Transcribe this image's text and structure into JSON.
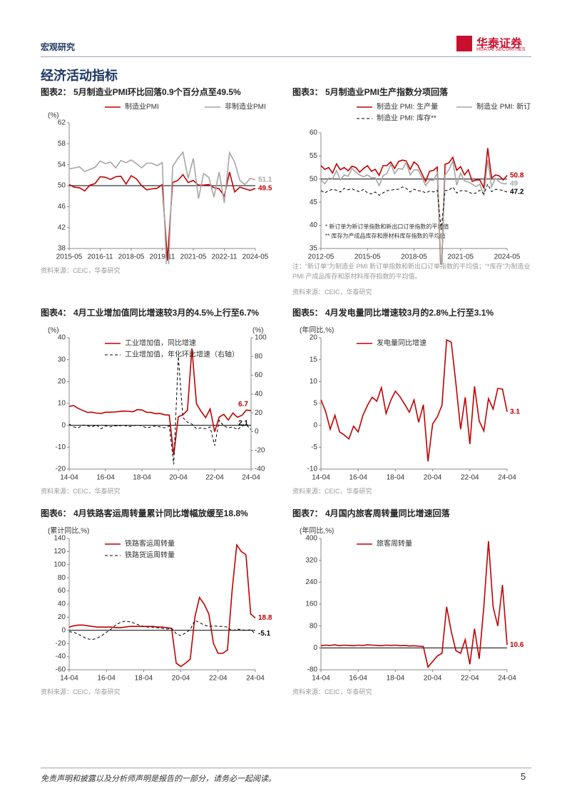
{
  "header": {
    "section": "宏观研究",
    "logo_cn": "华泰证券",
    "logo_en": "HUATAI SECURITIES"
  },
  "section_title": "经济活动指标",
  "footer": {
    "disclaimer": "免责声明和披露以及分析师声明是报告的一部分，请务必一起阅读。",
    "page": "5"
  },
  "chart_data": [
    {
      "type": "line",
      "title": "图表2：  5月制造业PMI环比回落0.9个百分点至49.5%",
      "y_label": "(%)",
      "legend_columns": 2,
      "legend_position": "top",
      "categories": [
        "2015-05",
        null,
        null,
        null,
        null,
        null,
        "2016-11",
        null,
        null,
        null,
        null,
        null,
        "2018-05",
        null,
        null,
        null,
        null,
        null,
        "2019-11",
        null,
        null,
        null,
        null,
        null,
        "2021-05",
        null,
        null,
        null,
        null,
        null,
        "2022-11",
        null,
        null,
        null,
        null,
        null,
        "2024-05"
      ],
      "series": [
        {
          "name": "制造业PMI",
          "color": "#c00000",
          "values": [
            50.2,
            49.7,
            49.6,
            49.0,
            50.1,
            50.4,
            51.7,
            51.6,
            51.2,
            51.7,
            51.8,
            50.3,
            51.9,
            51.3,
            50.0,
            49.2,
            49.4,
            49.5,
            50.2,
            35.7,
            50.6,
            51.0,
            52.1,
            50.6,
            51.0,
            50.1,
            50.1,
            50.2,
            49.6,
            49.4,
            48.0,
            52.6,
            48.8,
            49.7,
            49.4,
            49.1,
            49.5
          ]
        },
        {
          "name": "非制造业PMI",
          "color": "#a6a6a6",
          "values": [
            53.2,
            53.4,
            53.6,
            52.7,
            53.1,
            53.5,
            54.7,
            54.2,
            54.5,
            53.4,
            54.8,
            54.4,
            54.9,
            54.2,
            53.4,
            54.3,
            54.3,
            53.8,
            54.4,
            29.6,
            53.6,
            55.2,
            56.4,
            51.4,
            55.2,
            47.5,
            52.3,
            51.6,
            47.8,
            52.6,
            46.7,
            56.3,
            54.5,
            51.0,
            50.2,
            51.4,
            51.1
          ]
        }
      ],
      "ylim": [
        38,
        62
      ],
      "yticks": [
        38,
        42,
        46,
        50,
        54,
        58,
        62
      ],
      "hline": 50,
      "source": "资料来源：CEIC，华泰研究"
    },
    {
      "type": "line",
      "title": "图表3：  5月制造业PMI生产指数分项回落",
      "legend_columns": 2,
      "legend_position": "top",
      "categories": [
        "2012-05",
        null,
        null,
        null,
        null,
        null,
        null,
        null,
        null,
        null,
        null,
        null,
        "2015-05",
        null,
        null,
        null,
        null,
        null,
        null,
        null,
        null,
        null,
        null,
        null,
        "2018-05",
        null,
        null,
        null,
        null,
        null,
        null,
        null,
        null,
        null,
        null,
        null,
        "2021-05",
        null,
        null,
        null,
        null,
        null,
        null,
        null,
        null,
        null,
        null,
        null,
        "2024-05"
      ],
      "series": [
        {
          "name": "制造业 PMI: 生产量",
          "color": "#c00000",
          "values": [
            52.9,
            52.1,
            52.5,
            51.3,
            53.3,
            52.0,
            52.5,
            51.8,
            52.8,
            52.5,
            51.5,
            52.3,
            52.9,
            51.7,
            52.1,
            50.8,
            52.9,
            52.9,
            53.7,
            52.3,
            53.8,
            54.1,
            53.9,
            52.1,
            53.7,
            53.0,
            51.2,
            49.5,
            51.7,
            51.9,
            52.6,
            27.8,
            53.2,
            53.5,
            54.7,
            51.9,
            52.7,
            50.9,
            52.0,
            49.5,
            49.8,
            49.8,
            48.1,
            56.7,
            50.2,
            50.9,
            50.7,
            49.8,
            50.8
          ]
        },
        {
          "name": "制造业 PMI: 新订单*",
          "color": "#a6a6a6",
          "values": [
            49.8,
            49.0,
            50.2,
            50.1,
            51.8,
            49.8,
            50.9,
            50.6,
            52.3,
            51.5,
            50.9,
            50.5,
            50.9,
            50.3,
            50.3,
            48.6,
            50.7,
            51.2,
            53.2,
            51.2,
            52.3,
            52.1,
            53.6,
            50.9,
            52.0,
            52.0,
            50.4,
            48.6,
            49.8,
            49.7,
            51.3,
            29.3,
            50.9,
            52.0,
            53.9,
            48.7,
            51.3,
            49.6,
            49.4,
            48.9,
            48.4,
            48.9,
            46.4,
            54.1,
            48.3,
            50.2,
            49.4,
            49.0,
            49.0
          ]
        },
        {
          "name": "制造业 PMI: 库存**",
          "color": "#000000",
          "dash": true,
          "values": [
            47.5,
            47.0,
            47.5,
            47.8,
            47.6,
            47.2,
            48.0,
            47.7,
            47.9,
            47.5,
            47.3,
            47.8,
            47.0,
            46.8,
            47.2,
            46.5,
            47.0,
            47.5,
            47.6,
            47.8,
            47.8,
            48.3,
            48.0,
            47.2,
            47.8,
            47.5,
            47.4,
            47.0,
            47.4,
            47.2,
            47.6,
            39.0,
            47.5,
            47.6,
            48.3,
            47.0,
            47.5,
            47.5,
            47.3,
            46.8,
            47.0,
            47.6,
            46.8,
            48.9,
            47.3,
            47.8,
            47.7,
            47.5,
            47.2
          ]
        }
      ],
      "ylim": [
        35,
        60
      ],
      "yticks": [
        35,
        40,
        45,
        50,
        55,
        60
      ],
      "hline": 50,
      "notes": [
        "*  新订单为新订单指数和新出口订单指数的平均值",
        "** 库存为产成品库存和原材料库存指数的平均值"
      ],
      "footnote": "注：“新订单”为制造业 PMI 新订单指数和新出口订单指数的平均值；“*库存”为制造业 PMI 产成品库存和原材料库存指数的平均值。",
      "source": "资料来源：CEIC，华泰研究"
    },
    {
      "type": "line",
      "title": "图表4：  4月工业增加值同比增速较3月的4.5%上行至6.7%",
      "y_label": "(%)",
      "y2_label": "(%)",
      "legend_columns": 1,
      "legend_position": "inside",
      "categories": [
        "14-04",
        null,
        null,
        null,
        null,
        null,
        null,
        null,
        "16-04",
        null,
        null,
        null,
        null,
        null,
        null,
        null,
        "18-04",
        null,
        null,
        null,
        null,
        null,
        null,
        null,
        "20-04",
        null,
        null,
        null,
        null,
        null,
        null,
        null,
        "22-04",
        null,
        null,
        null,
        null,
        null,
        null,
        null,
        "24-04"
      ],
      "series": [
        {
          "name": "工业增加值，同比增速",
          "color": "#c00000",
          "values": [
            8.7,
            9.0,
            7.7,
            6.8,
            5.9,
            6.0,
            5.6,
            5.4,
            6.0,
            6.0,
            6.1,
            6.3,
            6.5,
            6.4,
            6.2,
            7.2,
            7.0,
            6.0,
            5.9,
            5.3,
            5.4,
            4.8,
            4.7,
            -13.5,
            3.9,
            4.8,
            6.9,
            35.1,
            9.8,
            6.4,
            3.5,
            7.5,
            -2.9,
            3.8,
            5.0,
            2.4,
            5.6,
            3.7,
            4.6,
            7.0,
            6.7
          ]
        },
        {
          "name": "工业增加值，年化环比增速（右轴）",
          "color": "#000000",
          "dash": true,
          "axis": "y2",
          "values": [
            8,
            5,
            4,
            7,
            6,
            5,
            7,
            3,
            6,
            5,
            6,
            6,
            7,
            5,
            6,
            7,
            6,
            4,
            5,
            6,
            5,
            4,
            6,
            -35,
            80,
            15,
            10,
            8,
            3,
            4,
            3,
            5,
            -15,
            12,
            6,
            4,
            5,
            2,
            6,
            7,
            2.1
          ]
        }
      ],
      "ylim": [
        -20,
        40
      ],
      "yticks": [
        -20,
        -10,
        0,
        10,
        20,
        30,
        40
      ],
      "y2lim": [
        -40,
        100
      ],
      "y2ticks": [
        -40,
        -20,
        0,
        20,
        40,
        60,
        80,
        100
      ],
      "hline": 0,
      "source": "资料来源：CEIC，华泰研究"
    },
    {
      "type": "line",
      "title": "图表5：  4月发电量同比增速较3月的2.8%上行至3.1%",
      "y_label": "(年同比,%)",
      "legend_columns": 1,
      "legend_position": "inside",
      "categories": [
        "14-04",
        null,
        null,
        null,
        null,
        null,
        null,
        null,
        "16-04",
        null,
        null,
        null,
        null,
        null,
        null,
        null,
        "18-04",
        null,
        null,
        null,
        null,
        null,
        null,
        null,
        "20-04",
        null,
        null,
        null,
        null,
        null,
        null,
        null,
        "22-04",
        null,
        null,
        null,
        null,
        null,
        null,
        null,
        "24-04"
      ],
      "series": [
        {
          "name": "发电量同比增速",
          "color": "#c00000",
          "values": [
            5.8,
            3.2,
            -0.9,
            2.3,
            -1.5,
            -2.2,
            -3.1,
            -0.2,
            -1.5,
            2.2,
            4.6,
            6.4,
            5.5,
            8.6,
            2.7,
            5.7,
            7.8,
            6.5,
            4.8,
            3.0,
            5.8,
            0.7,
            4.7,
            -8.2,
            0.3,
            1.9,
            4.6,
            19.5,
            19.0,
            9.6,
            -0.9,
            6.4,
            -4.3,
            8.9,
            1.0,
            -1.3,
            6.1,
            3.7,
            8.4,
            8.3,
            3.1
          ]
        }
      ],
      "ylim": [
        -10,
        20
      ],
      "yticks": [
        -10,
        -5,
        0,
        5,
        10,
        15,
        20
      ],
      "source": "资料来源：CEIC，华泰研究"
    },
    {
      "type": "line",
      "title": "图表6：  4月铁路客运周转量累计同比增幅放缓至18.8%",
      "y_label": "(累计同比,%)",
      "legend_columns": 1,
      "legend_position": "inside",
      "categories": [
        "14-04",
        null,
        null,
        null,
        null,
        null,
        null,
        null,
        "16-04",
        null,
        null,
        null,
        null,
        null,
        null,
        null,
        "18-04",
        null,
        null,
        null,
        null,
        null,
        null,
        null,
        "20-04",
        null,
        null,
        null,
        null,
        null,
        null,
        null,
        "22-04",
        null,
        null,
        null,
        null,
        null,
        null,
        null,
        "24-04"
      ],
      "series": [
        {
          "name": "铁路客运周转量",
          "color": "#c00000",
          "values": [
            5,
            7,
            8,
            8,
            7,
            6,
            5,
            5,
            5,
            5,
            4,
            4,
            5,
            6,
            6,
            6,
            6,
            6,
            6,
            5,
            5,
            4,
            3,
            -50,
            -55,
            -50,
            -44,
            20,
            50,
            40,
            25,
            -20,
            -35,
            -35,
            -30,
            60,
            130,
            120,
            115,
            25,
            18.8
          ]
        },
        {
          "name": "铁路货运周转量",
          "color": "#000000",
          "dash": true,
          "values": [
            -2,
            -3,
            -6,
            -10,
            -13,
            -14,
            -12,
            -8,
            -3,
            2,
            8,
            12,
            14,
            13,
            11,
            8,
            6,
            5,
            5,
            4,
            3,
            2,
            3,
            -5,
            -8,
            -4,
            1,
            15,
            12,
            8,
            6,
            7,
            6,
            6,
            5,
            -1,
            2,
            1,
            0,
            1,
            -5.1
          ]
        }
      ],
      "ylim": [
        -60,
        140
      ],
      "yticks": [
        -60,
        -40,
        -20,
        0,
        20,
        40,
        60,
        80,
        100,
        120,
        140
      ],
      "hline": 0,
      "source": "资料来源：CEIC，华泰研究"
    },
    {
      "type": "line",
      "title": "图表7：  4月国内旅客周转量同比增速回落",
      "y_label": "(年同比,%)",
      "legend_columns": 1,
      "legend_position": "inside",
      "categories": [
        "14-04",
        null,
        null,
        null,
        null,
        null,
        null,
        null,
        "16-04",
        null,
        null,
        null,
        null,
        null,
        null,
        null,
        "18-04",
        null,
        null,
        null,
        null,
        null,
        null,
        null,
        "20-04",
        null,
        null,
        null,
        null,
        null,
        null,
        null,
        "22-04",
        null,
        null,
        null,
        null,
        null,
        null,
        null,
        "24-04"
      ],
      "series": [
        {
          "name": "旅客周转量",
          "color": "#c00000",
          "values": [
            8,
            10,
            9,
            11,
            8,
            10,
            9,
            8,
            10,
            9,
            11,
            10,
            9,
            8,
            10,
            9,
            10,
            8,
            9,
            7,
            8,
            6,
            5,
            -70,
            -50,
            -30,
            -20,
            150,
            60,
            -10,
            -20,
            30,
            -60,
            70,
            -40,
            150,
            390,
            150,
            80,
            230,
            10.6
          ]
        }
      ],
      "ylim": [
        -80,
        400
      ],
      "yticks": [
        -80,
        0,
        80,
        160,
        240,
        320,
        400
      ],
      "hline": 0,
      "source": "资料来源：CEIC，华泰研究"
    }
  ]
}
